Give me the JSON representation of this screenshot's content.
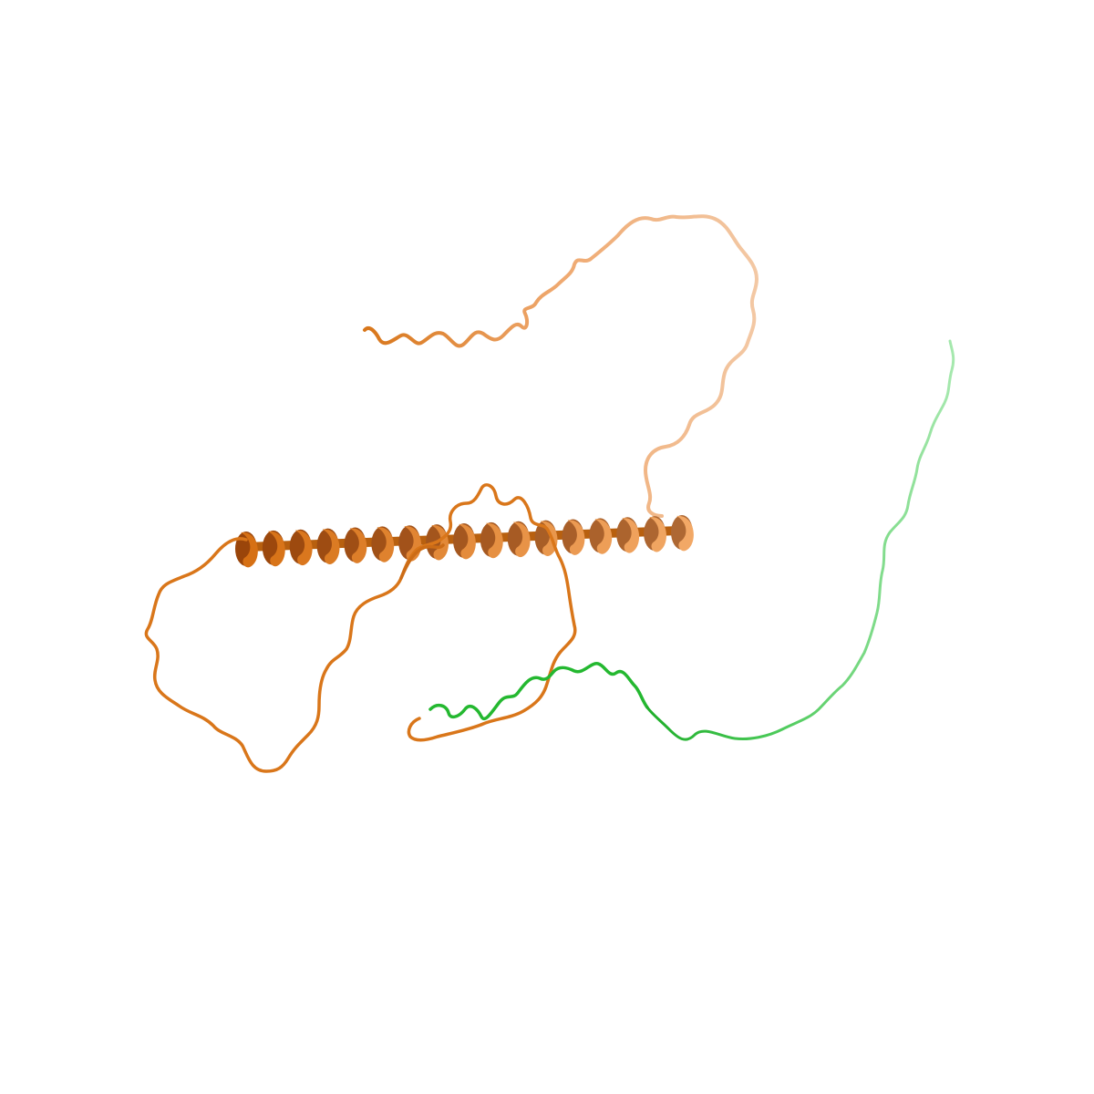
{
  "scene": {
    "description_visible_text": "",
    "background_color": "#ffffff"
  },
  "chains": [
    {
      "id": "chain-orange",
      "color": "#e8801e",
      "light_color": "#f0b88a",
      "dark_color": "#a85410",
      "representation": "cartoon"
    },
    {
      "id": "chain-green",
      "color": "#2ec43a",
      "light_color": "#8fe29a",
      "representation": "cartoon"
    }
  ]
}
